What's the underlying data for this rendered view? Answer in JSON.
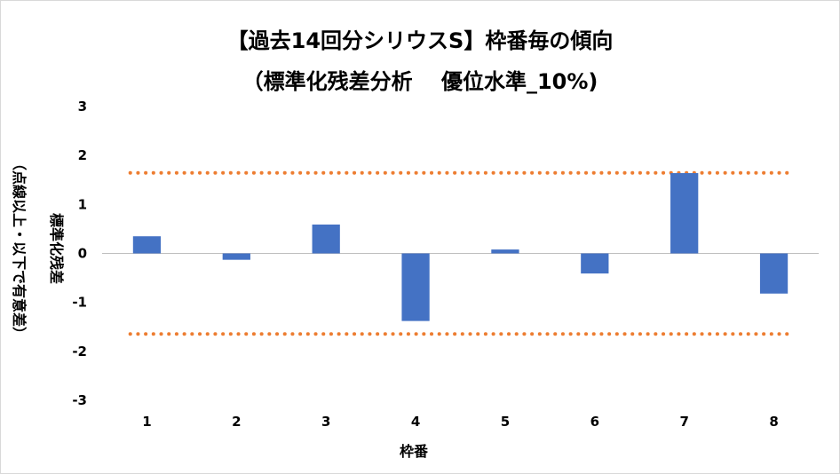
{
  "chart_data": {
    "type": "bar",
    "title": "【過去14回分シリウスS】枠番毎の傾向",
    "subtitle": "（標準化残差分析　 優位水準_10%)",
    "xlabel": "枠番",
    "ylabel": "標準化残差",
    "ylabel_note": "（点線以上・以下で有意差）",
    "categories": [
      "1",
      "2",
      "3",
      "4",
      "5",
      "6",
      "7",
      "8"
    ],
    "values": [
      0.35,
      -0.13,
      0.59,
      -1.38,
      0.08,
      -0.41,
      1.64,
      -0.82
    ],
    "ylim": [
      -3,
      3
    ],
    "yticks": [
      "3",
      "2",
      "1",
      "0",
      "-1",
      "-2",
      "-3"
    ],
    "thresholds": [
      1.645,
      -1.645
    ],
    "bar_color": "#4472c4",
    "threshold_color": "#ed7d31",
    "grid": false,
    "legend": "none"
  }
}
